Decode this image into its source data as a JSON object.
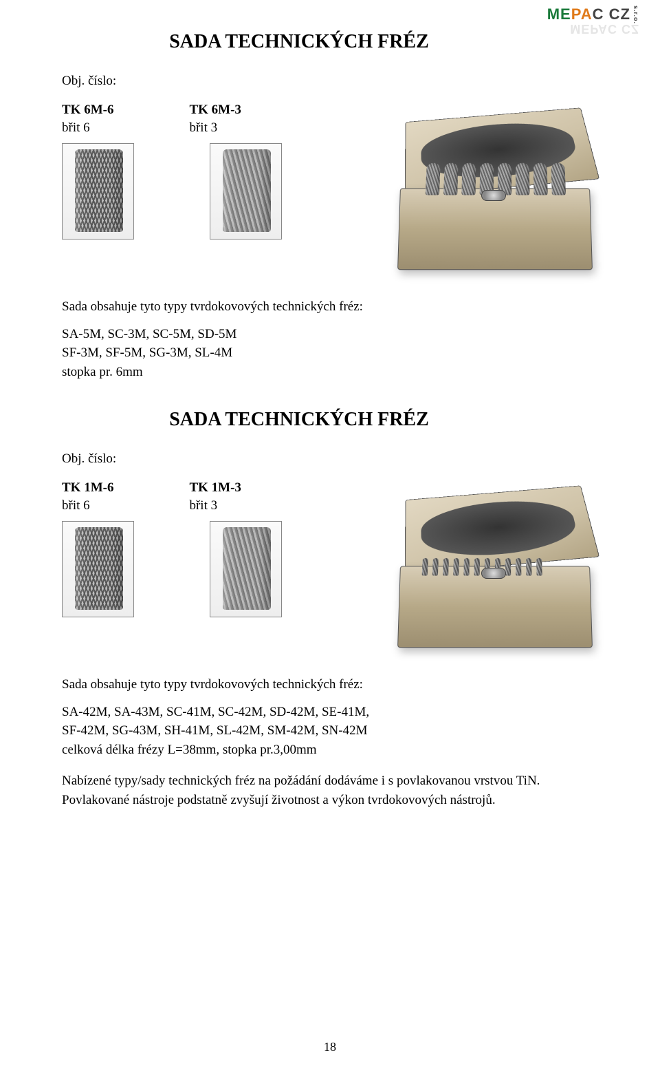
{
  "logo": {
    "text": "MEPAC CZ",
    "sro": "s.r.o."
  },
  "section1": {
    "title": "SADA TECHNICKÝCH FRÉZ",
    "obj": "Obj. číslo:",
    "left": {
      "code": "TK 6M-6",
      "sub": "břit 6"
    },
    "right": {
      "code": "TK 6M-3",
      "sub": "břit 3"
    },
    "intro": "Sada obsahuje tyto typy tvrdokovových technických fréz:",
    "line1": "SA-5M, SC-3M, SC-5M, SD-5M",
    "line2": "SF-3M, SF-5M, SG-3M, SL-4M",
    "line3": "stopka pr. 6mm"
  },
  "section2": {
    "title": "SADA TECHNICKÝCH FRÉZ",
    "obj": "Obj. číslo:",
    "left": {
      "code": "TK 1M-6",
      "sub": "břit 6"
    },
    "right": {
      "code": "TK 1M-3",
      "sub": "břit 3"
    },
    "intro": "Sada obsahuje tyto typy tvrdokovových technických fréz:",
    "line1": "SA-42M, SA-43M, SC-41M, SC-42M, SD-42M, SE-41M,",
    "line2": "SF-42M, SG-43M, SH-41M, SL-42M, SM-42M, SN-42M",
    "line3": "celková délka frézy L=38mm, stopka pr.3,00mm"
  },
  "final": {
    "l1": "Nabízené typy/sady technických fréz na požádání dodáváme i s povlakovanou vrstvou TiN.",
    "l2": "Povlakované nástroje podstatně zvyšují životnost a výkon tvrdokovových nástrojů."
  },
  "page": "18"
}
